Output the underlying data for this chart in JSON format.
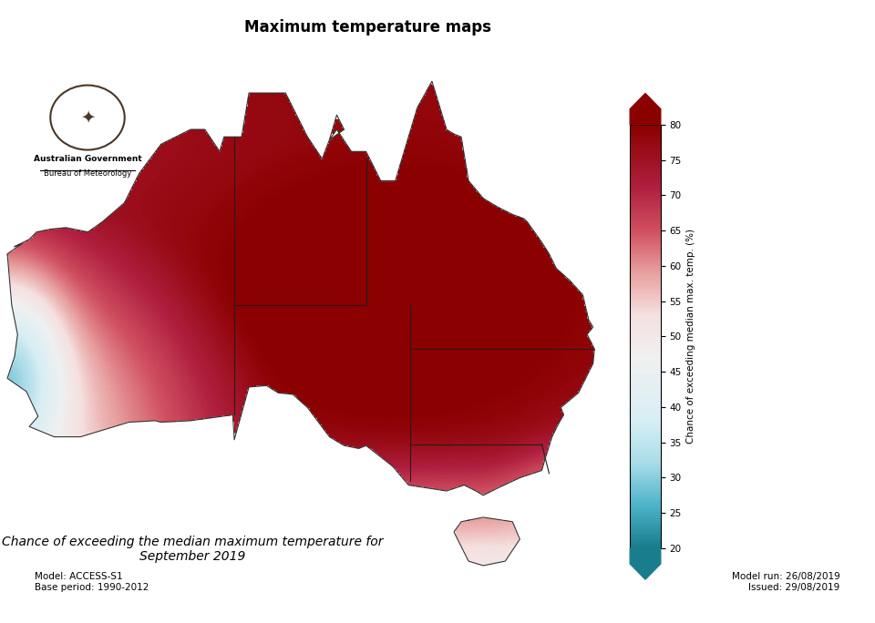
{
  "title": "Maximum temperature maps",
  "subtitle": "Chance of exceeding the median maximum temperature for\nSeptember 2019",
  "colorbar_label": "Chance of exceeding median max. temp. (%)",
  "colorbar_ticks": [
    20,
    25,
    30,
    35,
    40,
    45,
    50,
    55,
    60,
    65,
    70,
    75,
    80
  ],
  "vmin": 20,
  "vmax": 80,
  "model_text": "Model: ACCESS-S1\nBase period: 1990-2012",
  "issued_text": "Model run: 26/08/2019\nIssued: 29/08/2019",
  "background_color": "#f5f5f5",
  "colormap_colors": [
    [
      0.0,
      "#1a7d8e"
    ],
    [
      0.1,
      "#4db3c8"
    ],
    [
      0.2,
      "#a8dce8"
    ],
    [
      0.3,
      "#d8eef5"
    ],
    [
      0.45,
      "#f0f0f0"
    ],
    [
      0.55,
      "#f5e0e0"
    ],
    [
      0.65,
      "#e8a0a0"
    ],
    [
      0.75,
      "#d05060"
    ],
    [
      0.85,
      "#b02040"
    ],
    [
      1.0,
      "#8b0000"
    ]
  ]
}
